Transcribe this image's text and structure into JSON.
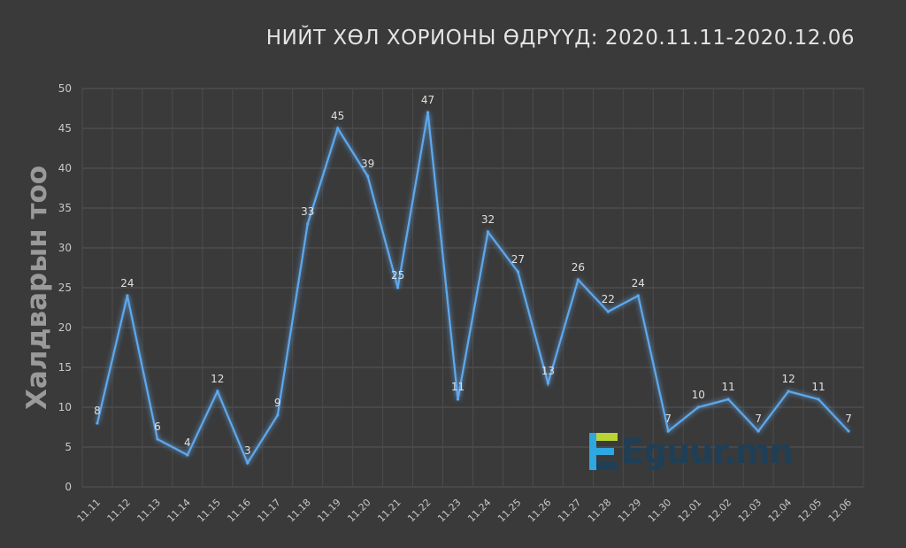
{
  "chart_data": {
    "type": "line",
    "title": "НИЙТ ХӨЛ ХОРИОНЫ ӨДРҮҮД: 2020.11.11-2020.12.06",
    "xlabel": "",
    "ylabel": "Халдварын тоо",
    "ylim": [
      0,
      50
    ],
    "yticks": [
      0,
      5,
      10,
      15,
      20,
      25,
      30,
      35,
      40,
      45,
      50
    ],
    "grid": true,
    "categories": [
      "11.11",
      "11.12",
      "11.13",
      "11.14",
      "11.15",
      "11.16",
      "11.17",
      "11.18",
      "11.19",
      "11.20",
      "11.21",
      "11.22",
      "11.23",
      "11.24",
      "11.25",
      "11.26",
      "11.27",
      "11.28",
      "11.29",
      "11.30",
      "12.01",
      "12.02",
      "12.03",
      "12.04",
      "12.05",
      "12.06"
    ],
    "series": [
      {
        "values": [
          8,
          24,
          6,
          4,
          12,
          3,
          9,
          33,
          45,
          39,
          25,
          47,
          11,
          32,
          27,
          13,
          26,
          22,
          24,
          7,
          10,
          11,
          7,
          12,
          11,
          7
        ]
      }
    ],
    "line_color": "#5fa8ec",
    "background_color": "#3a3a3a"
  },
  "logo": {
    "text": "Eguur.mn"
  }
}
